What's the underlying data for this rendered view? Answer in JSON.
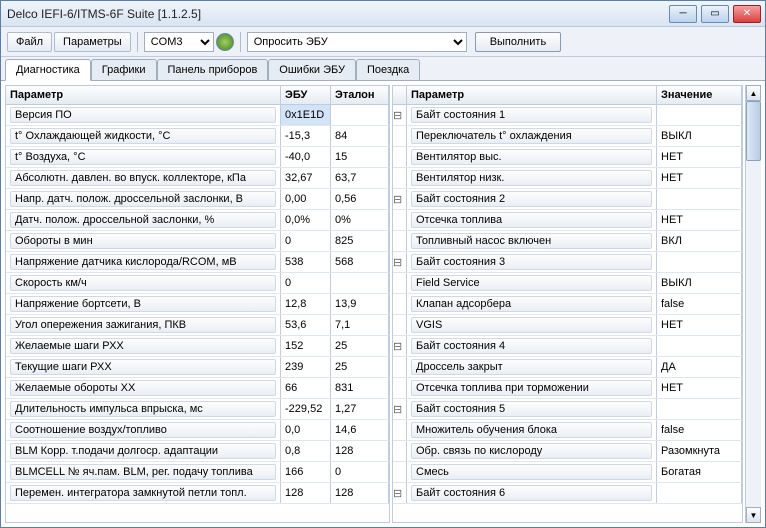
{
  "title": "Delco IEFI-6/ITMS-6F Suite [1.1.2.5]",
  "menu": {
    "file": "Файл",
    "params": "Параметры",
    "port": "COM3",
    "command": "Опросить ЭБУ",
    "run": "Выполнить"
  },
  "tabs": [
    "Диагностика",
    "Графики",
    "Панель приборов",
    "Ошибки ЭБУ",
    "Поездка"
  ],
  "active_tab": 0,
  "left": {
    "headers": [
      "Параметр",
      "ЭБУ",
      "Эталон"
    ],
    "rows": [
      {
        "p": "Версия ПО",
        "e": "0x1E1D",
        "r": "",
        "hl": true
      },
      {
        "p": "t° Охлаждающей жидкости, °C",
        "e": "-15,3",
        "r": "84"
      },
      {
        "p": "t° Воздуха, °C",
        "e": "-40,0",
        "r": "15"
      },
      {
        "p": "Абсолютн. давлен. во впуск. коллекторе, кПа",
        "e": "32,67",
        "r": "63,7"
      },
      {
        "p": "Напр. датч. полож. дроссельной заслонки, В",
        "e": "0,00",
        "r": "0,56"
      },
      {
        "p": "Датч. полож. дроссельной заслонки, %",
        "e": "0,0%",
        "r": "0%"
      },
      {
        "p": "Обороты в мин",
        "e": "0",
        "r": "825"
      },
      {
        "p": "Напряжение датчика кислорода/RCOM, мВ",
        "e": "538",
        "r": "568"
      },
      {
        "p": "Скорость км/ч",
        "e": "0",
        "r": ""
      },
      {
        "p": "Напряжение бортсети, В",
        "e": "12,8",
        "r": "13,9"
      },
      {
        "p": "Угол опережения зажигания, ПКВ",
        "e": "53,6",
        "r": "7,1"
      },
      {
        "p": "Желаемые шаги РХХ",
        "e": "152",
        "r": "25"
      },
      {
        "p": "Текущие шаги РХХ",
        "e": "239",
        "r": "25"
      },
      {
        "p": "Желаемые обороты ХХ",
        "e": "66",
        "r": "831"
      },
      {
        "p": "Длительность импульса впрыска, мс",
        "e": "-229,52",
        "r": "1,27"
      },
      {
        "p": "Соотношение воздух/топливо",
        "e": "0,0",
        "r": "14,6"
      },
      {
        "p": "BLM Корр. т.подачи долгоср. адаптации",
        "e": "0,8",
        "r": "128"
      },
      {
        "p": "BLMCELL № яч.пам. BLM, рег. подачу топлива",
        "e": "166",
        "r": "0"
      },
      {
        "p": "Перемен. интегратора замкнутой петли топл.",
        "e": "128",
        "r": "128"
      }
    ]
  },
  "right": {
    "headers": [
      "Параметр",
      "Значение"
    ],
    "rows": [
      {
        "t": "g",
        "p": "Байт состояния 1",
        "v": ""
      },
      {
        "t": "i",
        "p": "Переключатель t° охлаждения",
        "v": "ВЫКЛ"
      },
      {
        "t": "i",
        "p": "Вентилятор выс.",
        "v": "НЕТ"
      },
      {
        "t": "i",
        "p": "Вентилятор низк.",
        "v": "НЕТ"
      },
      {
        "t": "g",
        "p": "Байт состояния 2",
        "v": ""
      },
      {
        "t": "i",
        "p": "Отсечка топлива",
        "v": "НЕТ"
      },
      {
        "t": "i",
        "p": "Топливный насос включен",
        "v": "ВКЛ"
      },
      {
        "t": "g",
        "p": "Байт состояния 3",
        "v": ""
      },
      {
        "t": "i",
        "p": "Field Service",
        "v": "ВЫКЛ"
      },
      {
        "t": "i",
        "p": "Клапан адсорбера",
        "v": "false"
      },
      {
        "t": "i",
        "p": "VGIS",
        "v": "НЕТ"
      },
      {
        "t": "g",
        "p": "Байт состояния 4",
        "v": ""
      },
      {
        "t": "i",
        "p": "Дроссель закрыт",
        "v": "ДА"
      },
      {
        "t": "i",
        "p": "Отсечка топлива при торможении",
        "v": "НЕТ"
      },
      {
        "t": "g",
        "p": "Байт состояния 5",
        "v": ""
      },
      {
        "t": "i",
        "p": "Множитель обучения блока",
        "v": "false"
      },
      {
        "t": "i",
        "p": "Обр. связь по кислороду",
        "v": "Разомкнута"
      },
      {
        "t": "i",
        "p": "Смесь",
        "v": "Богатая"
      },
      {
        "t": "g",
        "p": "Байт состояния 6",
        "v": ""
      }
    ]
  }
}
